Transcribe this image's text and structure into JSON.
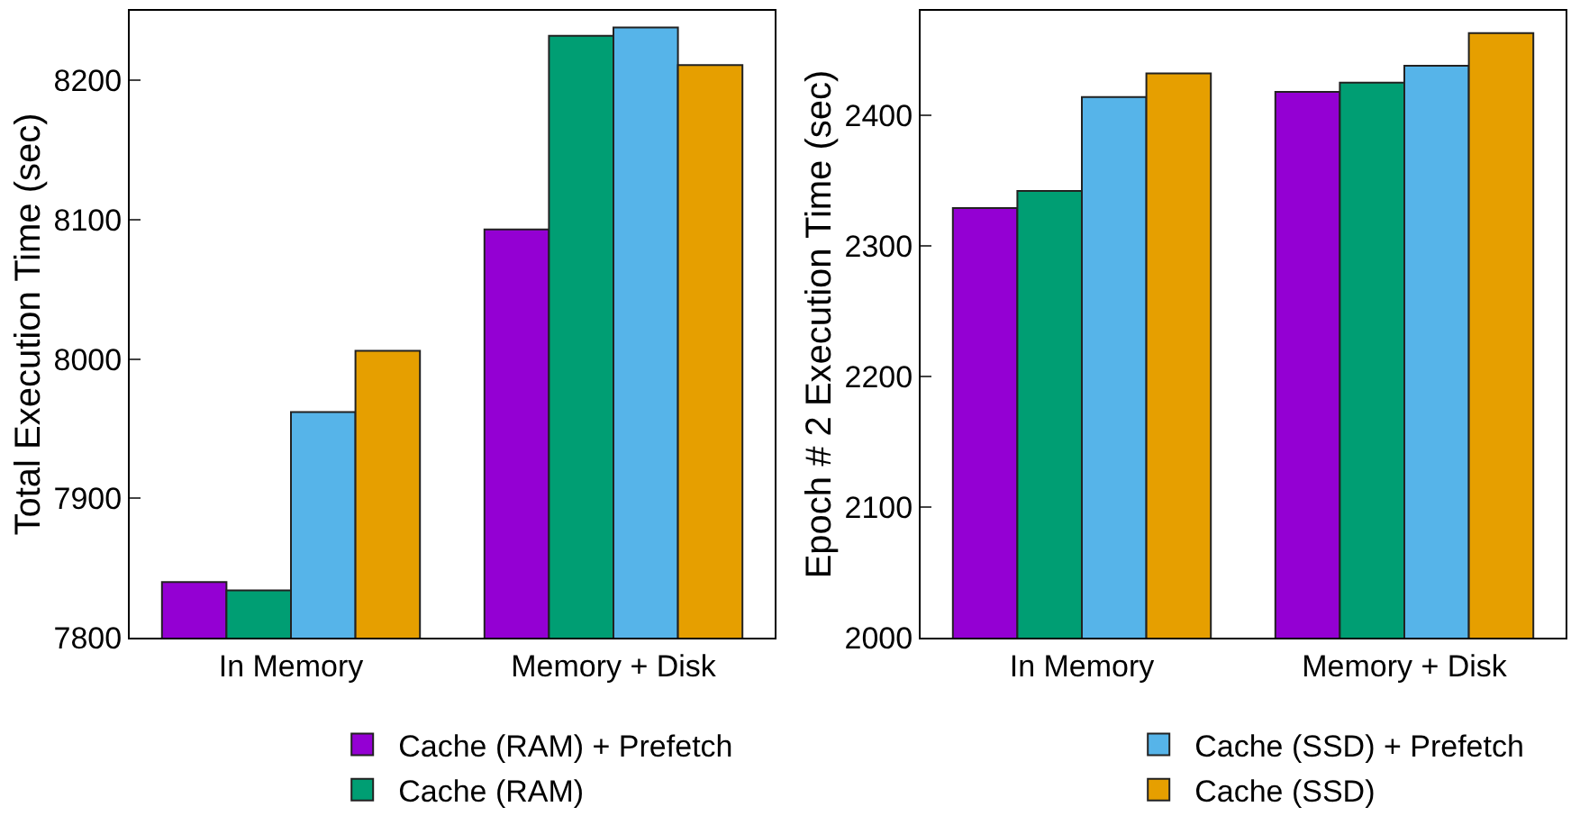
{
  "chart_data": [
    {
      "type": "bar",
      "ylabel": "Total Execution Time (sec)",
      "categories": [
        "In Memory",
        "Memory + Disk"
      ],
      "ylim": [
        7800,
        8250
      ],
      "yticks": [
        7800,
        7900,
        8000,
        8100,
        8200
      ],
      "grid": false,
      "legend": "bottom",
      "series": [
        {
          "name": "Cache (RAM) + Prefetch",
          "color": "#9400d3",
          "values": [
            7840,
            8093
          ]
        },
        {
          "name": "Cache (RAM)",
          "color": "#009e73",
          "values": [
            7834,
            8232
          ]
        },
        {
          "color": "#56b4e9",
          "values": [
            7962,
            8238
          ]
        },
        {
          "color": "#e69f00",
          "values": [
            8006,
            8211
          ]
        }
      ]
    },
    {
      "type": "bar",
      "ylabel": "Epoch # 2 Execution Time (sec)",
      "categories": [
        "In Memory",
        "Memory + Disk"
      ],
      "ylim": [
        2000,
        2480
      ],
      "yticks": [
        2000,
        2100,
        2200,
        2300,
        2400
      ],
      "grid": false,
      "legend": "bottom",
      "series": [
        {
          "color": "#9400d3",
          "values": [
            2329,
            2418
          ]
        },
        {
          "color": "#009e73",
          "values": [
            2342,
            2425
          ]
        },
        {
          "name": "Cache (SSD) + Prefetch",
          "color": "#56b4e9",
          "values": [
            2414,
            2438
          ]
        },
        {
          "name": "Cache (SSD)",
          "color": "#e69f00",
          "values": [
            2432,
            2463
          ]
        }
      ]
    }
  ]
}
